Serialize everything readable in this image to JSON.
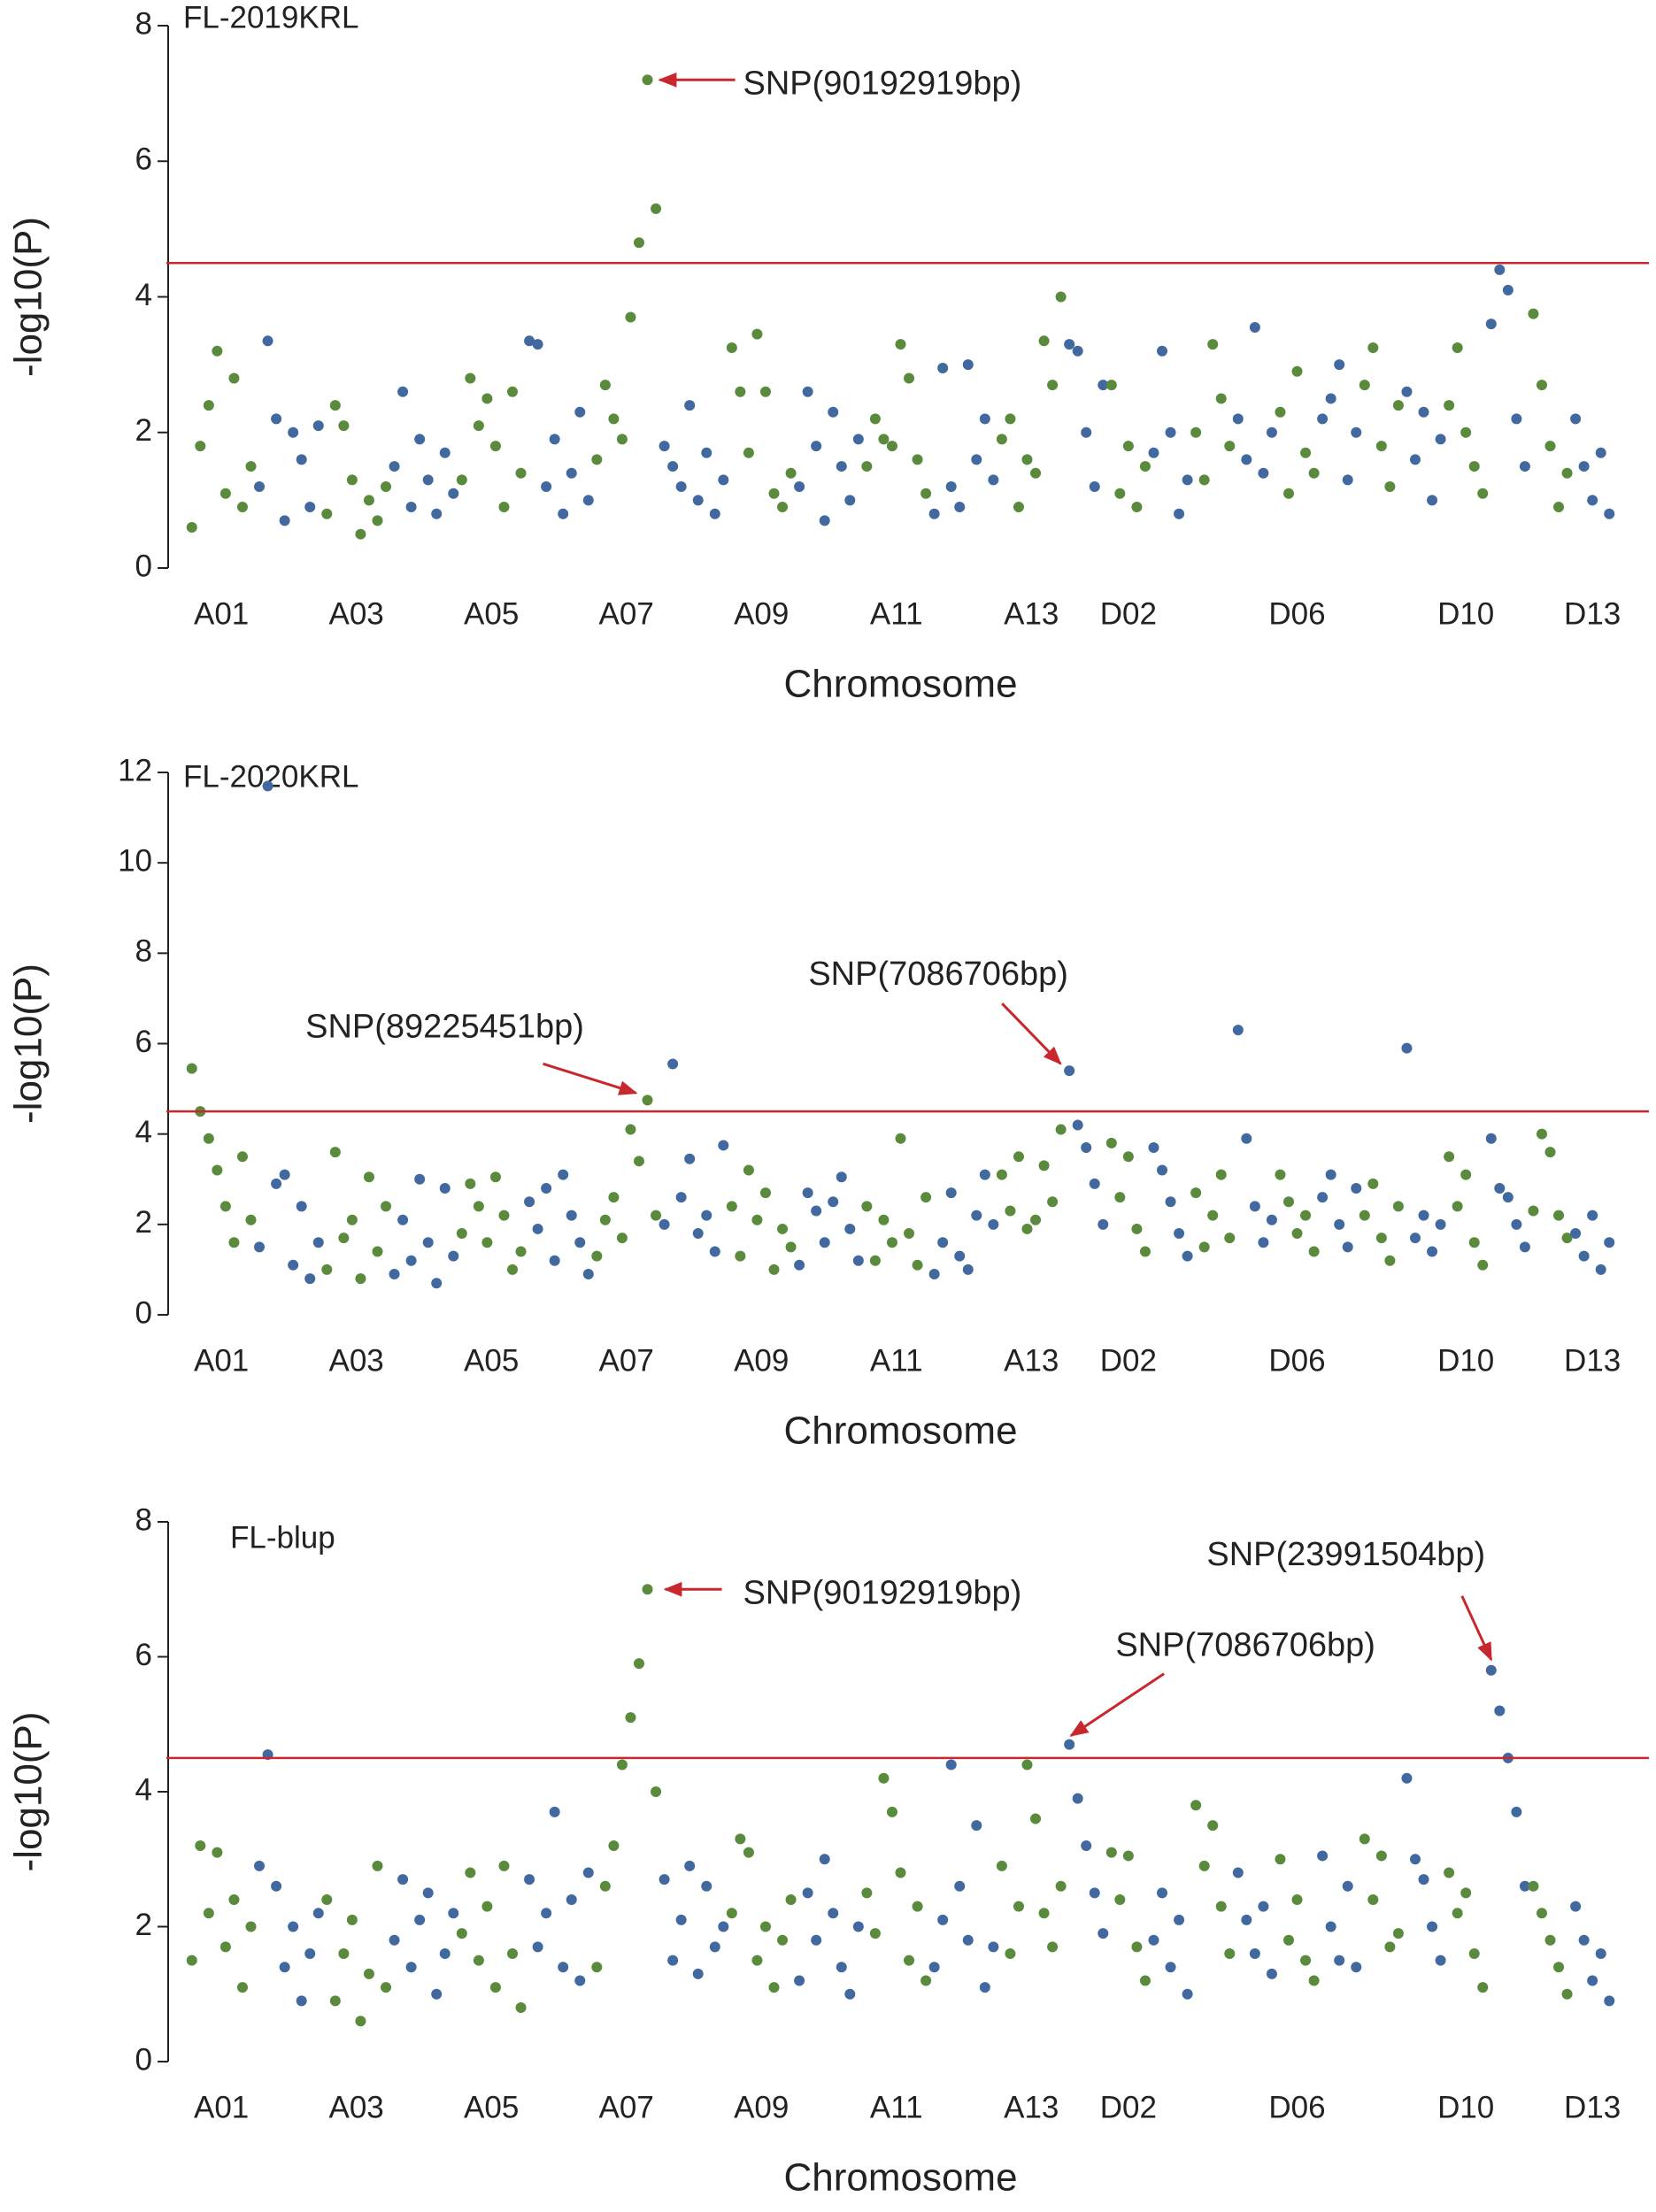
{
  "chart_data": [
    {
      "type": "scatter",
      "title": "FL-2019KRL",
      "xlabel": "Chromosome",
      "ylabel": "-log10(P)",
      "categories": [
        "A01",
        null,
        "A03",
        null,
        "A05",
        null,
        "A07",
        null,
        "A09",
        null,
        "A11",
        null,
        "A13",
        null,
        "D02",
        null,
        null,
        null,
        "D06",
        null,
        null,
        null,
        "D10",
        null,
        null,
        "D13"
      ],
      "colors": [
        "#5a8a3c",
        "#41699f"
      ],
      "ylim": [
        0,
        8
      ],
      "yticks": [
        0,
        2,
        4,
        6,
        8
      ],
      "threshold": 4.5,
      "threshold_color": "#c8282d",
      "annotations": [
        "SNP(90192919bp)"
      ],
      "values": [
        [
          0.6,
          1.8,
          2.4,
          3.2,
          1.1,
          2.8,
          0.9,
          1.5
        ],
        [
          1.2,
          3.35,
          2.2,
          0.7,
          2.0,
          1.6,
          0.9,
          2.1
        ],
        [
          0.8,
          2.4,
          2.1,
          1.3,
          0.5,
          1.0,
          0.7,
          1.2
        ],
        [
          1.5,
          2.6,
          0.9,
          1.9,
          1.3,
          0.8,
          1.7,
          1.1
        ],
        [
          1.3,
          2.8,
          2.1,
          2.5,
          1.8,
          0.9,
          2.6,
          1.4
        ],
        [
          3.35,
          3.3,
          1.2,
          1.9,
          0.8,
          1.4,
          2.3,
          1.0
        ],
        [
          1.6,
          2.7,
          2.2,
          1.9,
          3.7,
          4.8,
          7.2,
          5.3
        ],
        [
          1.8,
          1.5,
          1.2,
          2.4,
          1.0,
          1.7,
          0.8,
          1.3
        ],
        [
          3.25,
          2.6,
          1.7,
          3.45,
          2.6,
          1.1,
          0.9,
          1.4
        ],
        [
          1.2,
          2.6,
          1.8,
          0.7,
          2.3,
          1.5,
          1.0,
          1.9
        ],
        [
          1.5,
          2.2,
          1.9,
          1.8,
          3.3,
          2.8,
          1.6,
          1.1
        ],
        [
          0.8,
          2.95,
          1.2,
          0.9,
          3.0,
          1.6,
          2.2,
          1.3
        ],
        [
          1.9,
          2.2,
          0.9,
          1.6,
          1.4,
          3.35,
          2.7,
          4.0
        ],
        [
          3.3,
          3.2,
          2.0,
          1.2,
          2.7
        ],
        [
          2.7,
          1.1,
          1.8,
          0.9,
          1.5
        ],
        [
          1.7,
          3.2,
          2.0,
          0.8,
          1.3
        ],
        [
          2.0,
          1.3,
          3.3,
          2.5,
          1.8
        ],
        [
          2.2,
          1.6,
          3.55,
          1.4,
          2.0
        ],
        [
          2.3,
          1.1,
          2.9,
          1.7,
          1.4
        ],
        [
          2.2,
          2.5,
          3.0,
          1.3,
          2.0
        ],
        [
          2.7,
          3.25,
          1.8,
          1.2,
          2.4
        ],
        [
          2.6,
          1.6,
          2.3,
          1.0,
          1.9
        ],
        [
          2.4,
          3.25,
          2.0,
          1.5,
          1.1
        ],
        [
          3.6,
          4.4,
          4.1,
          2.2,
          1.5
        ],
        [
          3.75,
          2.7,
          1.8,
          0.9,
          1.4
        ],
        [
          2.2,
          1.5,
          1.0,
          1.7,
          0.8
        ]
      ]
    },
    {
      "type": "scatter",
      "title": "FL-2020KRL",
      "xlabel": "Chromosome",
      "ylabel": "-log10(P)",
      "categories": [
        "A01",
        null,
        "A03",
        null,
        "A05",
        null,
        "A07",
        null,
        "A09",
        null,
        "A11",
        null,
        "A13",
        null,
        "D02",
        null,
        null,
        null,
        "D06",
        null,
        null,
        null,
        "D10",
        null,
        null,
        "D13"
      ],
      "colors": [
        "#5a8a3c",
        "#41699f"
      ],
      "ylim": [
        0,
        12
      ],
      "yticks": [
        0,
        2,
        4,
        6,
        8,
        10,
        12
      ],
      "threshold": 4.5,
      "threshold_color": "#c8282d",
      "annotations": [
        "SNP(89225451bp)",
        "SNP(7086706bp)"
      ],
      "values": [
        [
          5.45,
          4.5,
          3.9,
          3.2,
          2.4,
          1.6,
          3.5,
          2.1
        ],
        [
          1.5,
          11.7,
          2.9,
          3.1,
          1.1,
          2.4,
          0.8,
          1.6
        ],
        [
          1.0,
          3.6,
          1.7,
          2.1,
          0.8,
          3.05,
          1.4,
          2.4
        ],
        [
          0.9,
          2.1,
          1.2,
          3.0,
          1.6,
          0.7,
          2.8,
          1.3
        ],
        [
          1.8,
          2.9,
          2.4,
          1.6,
          3.05,
          2.2,
          1.0,
          1.4
        ],
        [
          2.5,
          1.9,
          2.8,
          1.2,
          3.1,
          2.2,
          1.6,
          0.9
        ],
        [
          1.3,
          2.1,
          2.6,
          1.7,
          4.1,
          3.4,
          4.75,
          2.2
        ],
        [
          2.0,
          5.55,
          2.6,
          3.45,
          1.8,
          2.2,
          1.4,
          3.75
        ],
        [
          2.4,
          1.3,
          3.2,
          2.1,
          2.7,
          1.0,
          1.9,
          1.5
        ],
        [
          1.1,
          2.7,
          2.3,
          1.6,
          2.5,
          3.05,
          1.9,
          1.2
        ],
        [
          2.4,
          1.2,
          2.1,
          1.6,
          3.9,
          1.8,
          1.1,
          2.6
        ],
        [
          0.9,
          1.6,
          2.7,
          1.3,
          1.0,
          2.2,
          3.1,
          2.0
        ],
        [
          3.1,
          2.3,
          3.5,
          1.9,
          2.1,
          3.3,
          2.5,
          4.1
        ],
        [
          5.4,
          4.2,
          3.7,
          2.9,
          2.0
        ],
        [
          3.8,
          2.6,
          3.5,
          1.9,
          1.4
        ],
        [
          3.7,
          3.2,
          2.5,
          1.8,
          1.3
        ],
        [
          2.7,
          1.5,
          2.2,
          3.1,
          1.7
        ],
        [
          6.3,
          3.9,
          2.4,
          1.6,
          2.1
        ],
        [
          3.1,
          2.5,
          1.8,
          2.2,
          1.4
        ],
        [
          2.6,
          3.1,
          2.0,
          1.5,
          2.8
        ],
        [
          2.2,
          2.9,
          1.7,
          1.2,
          2.4
        ],
        [
          5.9,
          1.7,
          2.2,
          1.4,
          2.0
        ],
        [
          3.5,
          2.4,
          3.1,
          1.6,
          1.1
        ],
        [
          3.9,
          2.8,
          2.6,
          2.0,
          1.5
        ],
        [
          2.3,
          4.0,
          3.6,
          2.2,
          1.7
        ],
        [
          1.8,
          1.3,
          2.2,
          1.0,
          1.6
        ]
      ]
    },
    {
      "type": "scatter",
      "title": "FL-blup",
      "xlabel": "Chromosome",
      "ylabel": "-log10(P)",
      "categories": [
        "A01",
        null,
        "A03",
        null,
        "A05",
        null,
        "A07",
        null,
        "A09",
        null,
        "A11",
        null,
        "A13",
        null,
        "D02",
        null,
        null,
        null,
        "D06",
        null,
        null,
        null,
        "D10",
        null,
        null,
        "D13"
      ],
      "colors": [
        "#5a8a3c",
        "#41699f"
      ],
      "ylim": [
        0,
        8
      ],
      "yticks": [
        0,
        2,
        4,
        6,
        8
      ],
      "threshold": 4.5,
      "threshold_color": "#c8282d",
      "annotations": [
        "SNP(90192919bp)",
        "SNP(7086706bp)",
        "SNP(23991504bp)"
      ],
      "values": [
        [
          1.5,
          3.2,
          2.2,
          3.1,
          1.7,
          2.4,
          1.1,
          2.0
        ],
        [
          2.9,
          4.55,
          2.6,
          1.4,
          2.0,
          0.9,
          1.6,
          2.2
        ],
        [
          2.4,
          0.9,
          1.6,
          2.1,
          0.6,
          1.3,
          2.9,
          1.1
        ],
        [
          1.8,
          2.7,
          1.4,
          2.1,
          2.5,
          1.0,
          1.6,
          2.2
        ],
        [
          1.9,
          2.8,
          1.5,
          2.3,
          1.1,
          2.9,
          1.6,
          0.8
        ],
        [
          2.7,
          1.7,
          2.2,
          3.7,
          1.4,
          2.4,
          1.2,
          2.8
        ],
        [
          1.4,
          2.6,
          3.2,
          4.4,
          5.1,
          5.9,
          7.0,
          4.0
        ],
        [
          2.7,
          1.5,
          2.1,
          2.9,
          1.3,
          2.6,
          1.7,
          2.0
        ],
        [
          2.2,
          3.3,
          3.1,
          1.5,
          2.0,
          1.1,
          1.8,
          2.4
        ],
        [
          1.2,
          2.5,
          1.8,
          3.0,
          2.2,
          1.4,
          1.0,
          2.0
        ],
        [
          2.5,
          1.9,
          4.2,
          3.7,
          2.8,
          1.5,
          2.3,
          1.2
        ],
        [
          1.4,
          2.1,
          4.4,
          2.6,
          1.8,
          3.5,
          1.1,
          1.7
        ],
        [
          2.9,
          1.6,
          2.3,
          4.4,
          3.6,
          2.2,
          1.7,
          2.6
        ],
        [
          4.7,
          3.9,
          3.2,
          2.5,
          1.9
        ],
        [
          3.1,
          2.4,
          3.05,
          1.7,
          1.2
        ],
        [
          1.8,
          2.5,
          1.4,
          2.1,
          1.0
        ],
        [
          3.8,
          2.9,
          3.5,
          2.3,
          1.6
        ],
        [
          2.8,
          2.1,
          1.6,
          2.3,
          1.3
        ],
        [
          3.0,
          1.8,
          2.4,
          1.5,
          1.2
        ],
        [
          3.05,
          2.0,
          1.5,
          2.6,
          1.4
        ],
        [
          3.3,
          2.4,
          3.05,
          1.7,
          1.9
        ],
        [
          4.2,
          3.0,
          2.7,
          2.0,
          1.5
        ],
        [
          2.8,
          2.2,
          2.5,
          1.6,
          1.1
        ],
        [
          5.8,
          5.2,
          4.5,
          3.7,
          2.6
        ],
        [
          2.6,
          2.2,
          1.8,
          1.4,
          1.0
        ],
        [
          2.3,
          1.8,
          1.2,
          1.6,
          0.9
        ]
      ]
    }
  ]
}
